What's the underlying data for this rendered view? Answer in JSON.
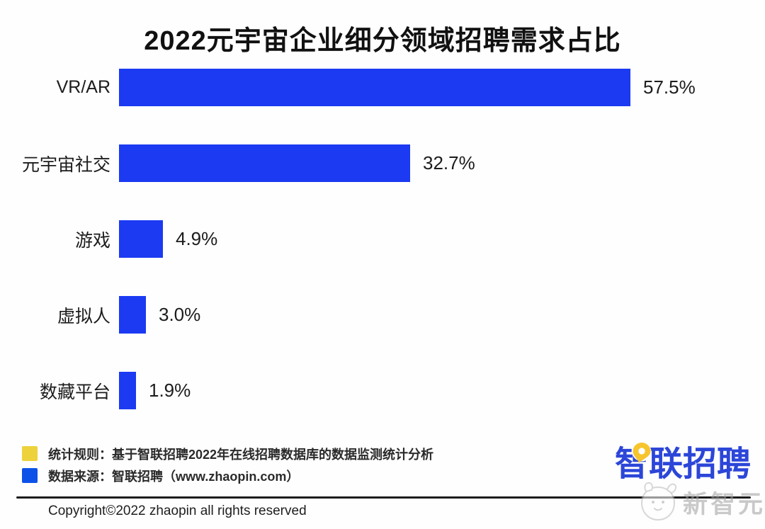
{
  "title": "2022元宇宙企业细分领域招聘需求占比",
  "chart_data": {
    "type": "bar",
    "orientation": "horizontal",
    "title": "2022元宇宙企业细分领域招聘需求占比",
    "categories": [
      "VR/AR",
      "元宇宙社交",
      "游戏",
      "虚拟人",
      "数藏平台"
    ],
    "values": [
      57.5,
      32.7,
      4.9,
      3.0,
      1.9
    ],
    "value_labels": [
      "57.5%",
      "32.7%",
      "4.9%",
      "3.0%",
      "1.9%"
    ],
    "bar_color": "#1b3af2",
    "xlim": [
      0,
      62
    ],
    "grid": false,
    "legend_position": "none"
  },
  "legend": {
    "items": [
      {
        "swatch_color": "#edd23c",
        "label": "统计规则：基于智联招聘2022年在线招聘数据库的数据监测统计分析"
      },
      {
        "swatch_color": "#0d52e8",
        "label": "数据来源：智联招聘（www.zhaopin.com）"
      }
    ]
  },
  "logo": {
    "text": "智联招聘",
    "color": "#2c46d8",
    "pin_color": "#f6c52e"
  },
  "watermark": {
    "text": "新智元"
  },
  "footer": {
    "copyright": "Copyright©2022 zhaopin all rights reserved"
  }
}
